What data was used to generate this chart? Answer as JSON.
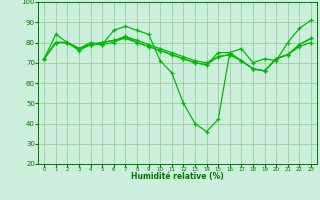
{
  "xlabel": "Humidité relative (%)",
  "xlim": [
    -0.5,
    23.5
  ],
  "ylim": [
    20,
    100
  ],
  "yticks": [
    20,
    30,
    40,
    50,
    60,
    70,
    80,
    90,
    100
  ],
  "xticks": [
    0,
    1,
    2,
    3,
    4,
    5,
    6,
    7,
    8,
    9,
    10,
    11,
    12,
    13,
    14,
    15,
    16,
    17,
    18,
    19,
    20,
    21,
    22,
    23
  ],
  "bg_color": "#cceedd",
  "grid_color": "#99cc99",
  "line_color": "#00bb00",
  "series": [
    [
      72,
      84,
      80,
      77,
      80,
      79,
      86,
      88,
      86,
      84,
      71,
      65,
      50,
      40,
      36,
      42,
      75,
      77,
      70,
      72,
      71,
      80,
      87,
      91
    ],
    [
      72,
      80,
      80,
      76,
      79,
      79,
      80,
      83,
      80,
      78,
      76,
      74,
      72,
      70,
      69,
      75,
      75,
      71,
      67,
      66,
      72,
      74,
      79,
      82
    ],
    [
      72,
      80,
      80,
      77,
      79,
      80,
      81,
      82,
      80,
      78,
      76,
      74,
      72,
      70,
      69,
      73,
      74,
      71,
      67,
      66,
      72,
      74,
      78,
      80
    ],
    [
      72,
      80,
      80,
      77,
      79,
      80,
      81,
      83,
      81,
      79,
      77,
      75,
      73,
      71,
      70,
      73,
      74,
      71,
      67,
      66,
      72,
      74,
      79,
      82
    ]
  ]
}
